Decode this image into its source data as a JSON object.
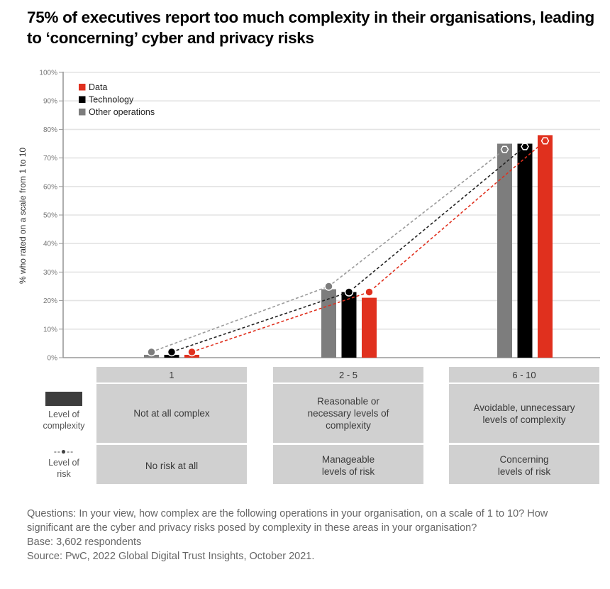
{
  "title": "75% of executives report too much complexity in their organisations, leading to ‘concerning’ cyber and privacy risks",
  "colors": {
    "data": "#e0301e",
    "technology": "#000000",
    "other_operations": "#7d7d7d",
    "grid": "#e4e4e4",
    "axis": "#999999",
    "category_box": "#d0d0d0"
  },
  "chart_data": {
    "type": "bar",
    "title": "75% of executives report too much complexity in their organisations, leading to ‘concerning’ cyber and privacy risks",
    "xlabel": "",
    "ylabel": "% who rated on a scale from 1 to 10",
    "ylim": [
      0,
      100
    ],
    "yticks": [
      "0%",
      "10%",
      "20%",
      "30%",
      "40%",
      "50%",
      "60%",
      "70%",
      "80%",
      "90%",
      "100%"
    ],
    "grid": true,
    "legend_position": "top-left",
    "categories": [
      "1",
      "2 - 5",
      "6 - 10"
    ],
    "series": [
      {
        "name": "Other operations",
        "key": "other_operations",
        "complexity": [
          1,
          24,
          75
        ],
        "risk": [
          2,
          25,
          73
        ]
      },
      {
        "name": "Technology",
        "key": "technology",
        "complexity": [
          1,
          23,
          75
        ],
        "risk": [
          2,
          23,
          74
        ]
      },
      {
        "name": "Data",
        "key": "data",
        "complexity": [
          1,
          21,
          78
        ],
        "risk": [
          2,
          23,
          76
        ]
      }
    ],
    "legend": [
      {
        "label": "Data",
        "key": "data"
      },
      {
        "label": "Technology",
        "key": "technology"
      },
      {
        "label": "Other operations",
        "key": "other_operations"
      }
    ],
    "marks_note": "Bars = level of complexity; dashed lines with markers = level of risk"
  },
  "table": {
    "key_complexity": "Level of complexity",
    "key_risk_symbol": "--●--",
    "key_risk": "Level of risk",
    "columns": [
      {
        "header": "1",
        "complexity": "Not at all complex",
        "risk": "No risk at all"
      },
      {
        "header": "2 - 5",
        "complexity": "Reasonable or necessary levels of complexity",
        "risk": "Manageable levels of risk"
      },
      {
        "header": "6 - 10",
        "complexity": "Avoidable, unnecessary levels of complexity",
        "risk": "Concerning levels of risk"
      }
    ]
  },
  "footnote": {
    "questions": "Questions: In your view, how complex are the following operations in your organisation, on a scale of 1 to 10? How significant are the cyber and privacy risks posed by complexity in these areas in your organisation?",
    "base": "Base: 3,602 respondents",
    "source": "Source: PwC, 2022 Global Digital Trust Insights, October 2021."
  }
}
